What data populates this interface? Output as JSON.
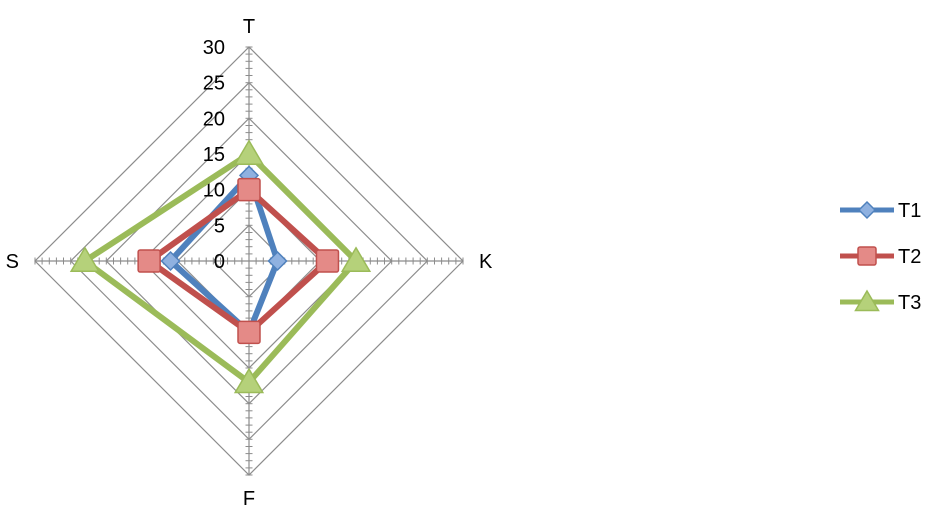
{
  "chart_data": {
    "type": "radar",
    "categories": [
      "T",
      "K",
      "F",
      "S"
    ],
    "rlim": [
      0,
      30
    ],
    "ticks": [
      0,
      5,
      10,
      15,
      20,
      25,
      30
    ],
    "grid": true,
    "legend_position": "right",
    "series": [
      {
        "name": "T1",
        "values": [
          12,
          4,
          10,
          11
        ],
        "color": "#4f81bd",
        "marker": "diamond"
      },
      {
        "name": "T2",
        "values": [
          10,
          11,
          10,
          14
        ],
        "color": "#c0504d",
        "marker": "square"
      },
      {
        "name": "T3",
        "values": [
          15,
          15,
          17,
          23
        ],
        "color": "#9bbb59",
        "marker": "triangle"
      }
    ]
  }
}
